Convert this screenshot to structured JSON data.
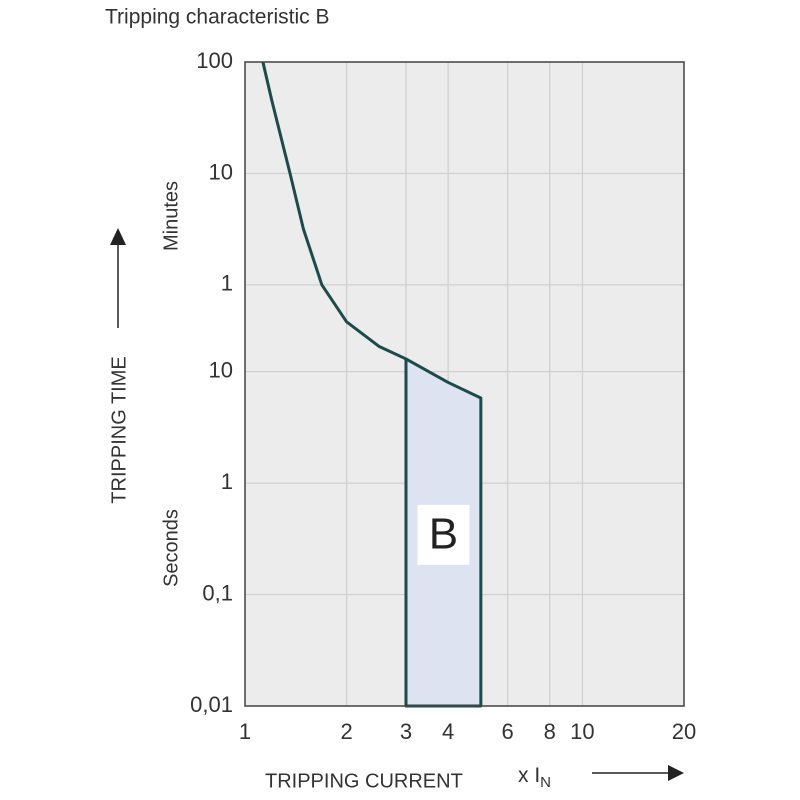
{
  "chart_data": {
    "type": "line",
    "title": "Tripping characteristic B",
    "y_label": "TRIPPING TIME",
    "y_unit_labels": [
      "Minutes",
      "Seconds"
    ],
    "x_label": "TRIPPING CURRENT",
    "x_unit": "x I",
    "x_unit_sub": "N",
    "x_log": true,
    "y_log": true,
    "grid": true,
    "xlim": [
      1,
      20
    ],
    "xticks": [
      1,
      2,
      3,
      4,
      6,
      8,
      10,
      20
    ],
    "ylim": [
      0.01,
      6000
    ],
    "yticks": [
      {
        "value": 6000,
        "label": "100"
      },
      {
        "value": 600,
        "label": "10"
      },
      {
        "value": 60,
        "label": "1"
      },
      10,
      1,
      {
        "value": 0.1,
        "label": "0,1"
      },
      {
        "value": 0.01,
        "label": "0,01"
      }
    ],
    "color": "#1d4a4a",
    "x": [
      1.13,
      1.2,
      1.36,
      1.49,
      1.69,
      2,
      2.5,
      3
    ],
    "values": [
      6000,
      2730,
      600,
      190,
      60,
      28,
      16.8,
      13
    ],
    "band": {
      "label": "B",
      "color": "#dde3f1",
      "x": [
        3,
        4,
        5
      ],
      "values": [
        13,
        8,
        5.8
      ]
    }
  }
}
